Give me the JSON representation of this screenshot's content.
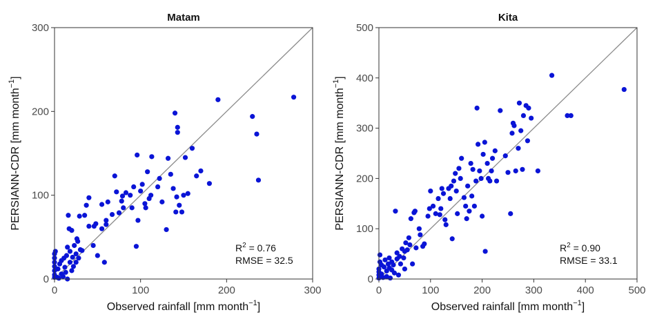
{
  "colors": {
    "point": "#0a14d6",
    "line": "#8c8c8c",
    "frame": "#333333"
  },
  "chart_data": [
    {
      "type": "scatter",
      "title": "Matam",
      "xlabel": "Observed rainfall [mm month",
      "ylabel": "PERSIANN-CDR [mm month",
      "unit_exponent": "−1",
      "unit_close": "]",
      "xlim": [
        0,
        300
      ],
      "ylim": [
        0,
        300
      ],
      "xticks": [
        "0",
        "100",
        "200",
        "300"
      ],
      "yticks": [
        "0",
        "100",
        "200",
        "300"
      ],
      "stat_r2_prefix": "R",
      "stat_r2_exp": "2",
      "stat_r2_value": " = 0.76",
      "stat_rmse": "RMSE = 32.5",
      "grid": false,
      "identity_line": true,
      "points": [
        [
          0,
          2
        ],
        [
          0,
          5
        ],
        [
          0,
          10
        ],
        [
          0,
          15
        ],
        [
          0,
          20
        ],
        [
          0,
          25
        ],
        [
          0,
          30
        ],
        [
          1,
          33
        ],
        [
          3,
          2
        ],
        [
          4,
          12
        ],
        [
          5,
          1
        ],
        [
          6,
          18
        ],
        [
          8,
          6
        ],
        [
          8,
          22
        ],
        [
          10,
          3
        ],
        [
          11,
          25
        ],
        [
          12,
          14
        ],
        [
          13,
          8
        ],
        [
          14,
          28
        ],
        [
          15,
          0
        ],
        [
          15,
          38
        ],
        [
          16,
          76
        ],
        [
          17,
          60
        ],
        [
          18,
          20
        ],
        [
          18,
          33
        ],
        [
          20,
          10
        ],
        [
          20,
          58
        ],
        [
          21,
          26
        ],
        [
          22,
          15
        ],
        [
          23,
          40
        ],
        [
          25,
          20
        ],
        [
          25,
          30
        ],
        [
          26,
          48
        ],
        [
          27,
          45
        ],
        [
          28,
          25
        ],
        [
          29,
          75
        ],
        [
          30,
          35
        ],
        [
          32,
          34
        ],
        [
          35,
          76
        ],
        [
          37,
          88
        ],
        [
          40,
          97
        ],
        [
          40,
          63
        ],
        [
          45,
          40
        ],
        [
          46,
          63
        ],
        [
          48,
          66
        ],
        [
          50,
          28
        ],
        [
          55,
          60
        ],
        [
          55,
          89
        ],
        [
          58,
          20
        ],
        [
          60,
          70
        ],
        [
          60,
          65
        ],
        [
          62,
          92
        ],
        [
          67,
          77
        ],
        [
          70,
          123
        ],
        [
          72,
          104
        ],
        [
          75,
          79
        ],
        [
          78,
          93
        ],
        [
          79,
          99
        ],
        [
          80,
          85
        ],
        [
          83,
          103
        ],
        [
          88,
          100
        ],
        [
          90,
          85
        ],
        [
          92,
          110
        ],
        [
          95,
          39
        ],
        [
          96,
          148
        ],
        [
          97,
          70
        ],
        [
          100,
          105
        ],
        [
          102,
          113
        ],
        [
          105,
          90
        ],
        [
          106,
          85
        ],
        [
          108,
          128
        ],
        [
          110,
          96
        ],
        [
          112,
          100
        ],
        [
          113,
          146
        ],
        [
          120,
          110
        ],
        [
          122,
          120
        ],
        [
          125,
          92
        ],
        [
          130,
          59
        ],
        [
          132,
          144
        ],
        [
          135,
          125
        ],
        [
          138,
          108
        ],
        [
          140,
          198
        ],
        [
          141,
          80
        ],
        [
          142,
          98
        ],
        [
          143,
          175
        ],
        [
          143,
          181
        ],
        [
          145,
          88
        ],
        [
          148,
          80
        ],
        [
          150,
          100
        ],
        [
          152,
          145
        ],
        [
          155,
          102
        ],
        [
          160,
          156
        ],
        [
          165,
          123
        ],
        [
          170,
          129
        ],
        [
          180,
          114
        ],
        [
          190,
          214
        ],
        [
          230,
          194
        ],
        [
          235,
          173
        ],
        [
          237,
          118
        ],
        [
          278,
          217
        ]
      ]
    },
    {
      "type": "scatter",
      "title": "Kita",
      "xlabel": "Observed rainfall [mm month",
      "ylabel": "PERSIANN-CDR [mm month",
      "unit_exponent": "−1",
      "unit_close": "]",
      "xlim": [
        0,
        500
      ],
      "ylim": [
        0,
        500
      ],
      "xticks": [
        "0",
        "100",
        "200",
        "300",
        "400",
        "500"
      ],
      "yticks": [
        "0",
        "100",
        "200",
        "300",
        "400",
        "500"
      ],
      "stat_r2_prefix": "R",
      "stat_r2_exp": "2",
      "stat_r2_value": " = 0.90",
      "stat_rmse": "RMSE = 33.1",
      "grid": false,
      "identity_line": true,
      "points": [
        [
          0,
          2
        ],
        [
          0,
          8
        ],
        [
          0,
          14
        ],
        [
          0,
          20
        ],
        [
          2,
          34
        ],
        [
          2,
          48
        ],
        [
          5,
          10
        ],
        [
          5,
          28
        ],
        [
          8,
          3
        ],
        [
          10,
          24
        ],
        [
          12,
          38
        ],
        [
          15,
          5
        ],
        [
          15,
          16
        ],
        [
          18,
          30
        ],
        [
          20,
          22
        ],
        [
          20,
          42
        ],
        [
          22,
          2
        ],
        [
          25,
          18
        ],
        [
          25,
          34
        ],
        [
          28,
          28
        ],
        [
          30,
          12
        ],
        [
          32,
          135
        ],
        [
          35,
          40
        ],
        [
          35,
          52
        ],
        [
          38,
          8
        ],
        [
          40,
          45
        ],
        [
          42,
          30
        ],
        [
          45,
          60
        ],
        [
          48,
          42
        ],
        [
          50,
          20
        ],
        [
          50,
          55
        ],
        [
          52,
          72
        ],
        [
          55,
          58
        ],
        [
          58,
          82
        ],
        [
          60,
          68
        ],
        [
          62,
          120
        ],
        [
          65,
          30
        ],
        [
          68,
          132
        ],
        [
          70,
          135
        ],
        [
          72,
          62
        ],
        [
          78,
          100
        ],
        [
          80,
          88
        ],
        [
          85,
          65
        ],
        [
          88,
          70
        ],
        [
          95,
          125
        ],
        [
          98,
          140
        ],
        [
          100,
          175
        ],
        [
          105,
          145
        ],
        [
          110,
          130
        ],
        [
          115,
          160
        ],
        [
          118,
          128
        ],
        [
          120,
          140
        ],
        [
          122,
          180
        ],
        [
          125,
          170
        ],
        [
          128,
          118
        ],
        [
          130,
          108
        ],
        [
          135,
          180
        ],
        [
          138,
          160
        ],
        [
          140,
          185
        ],
        [
          142,
          80
        ],
        [
          145,
          195
        ],
        [
          148,
          210
        ],
        [
          150,
          175
        ],
        [
          152,
          130
        ],
        [
          155,
          220
        ],
        [
          158,
          200
        ],
        [
          160,
          240
        ],
        [
          165,
          162
        ],
        [
          168,
          145
        ],
        [
          170,
          120
        ],
        [
          172,
          185
        ],
        [
          175,
          135
        ],
        [
          178,
          230
        ],
        [
          180,
          165
        ],
        [
          182,
          218
        ],
        [
          185,
          145
        ],
        [
          188,
          195
        ],
        [
          190,
          340
        ],
        [
          192,
          268
        ],
        [
          195,
          215
        ],
        [
          198,
          200
        ],
        [
          200,
          125
        ],
        [
          202,
          248
        ],
        [
          205,
          272
        ],
        [
          206,
          55
        ],
        [
          210,
          230
        ],
        [
          212,
          200
        ],
        [
          215,
          195
        ],
        [
          218,
          215
        ],
        [
          220,
          240
        ],
        [
          225,
          255
        ],
        [
          228,
          195
        ],
        [
          235,
          335
        ],
        [
          245,
          245
        ],
        [
          250,
          212
        ],
        [
          255,
          130
        ],
        [
          258,
          290
        ],
        [
          260,
          310
        ],
        [
          262,
          305
        ],
        [
          265,
          215
        ],
        [
          270,
          260
        ],
        [
          272,
          350
        ],
        [
          275,
          295
        ],
        [
          278,
          218
        ],
        [
          280,
          325
        ],
        [
          285,
          345
        ],
        [
          288,
          275
        ],
        [
          290,
          340
        ],
        [
          295,
          320
        ],
        [
          308,
          215
        ],
        [
          335,
          405
        ],
        [
          365,
          325
        ],
        [
          372,
          325
        ],
        [
          475,
          377
        ]
      ]
    }
  ]
}
